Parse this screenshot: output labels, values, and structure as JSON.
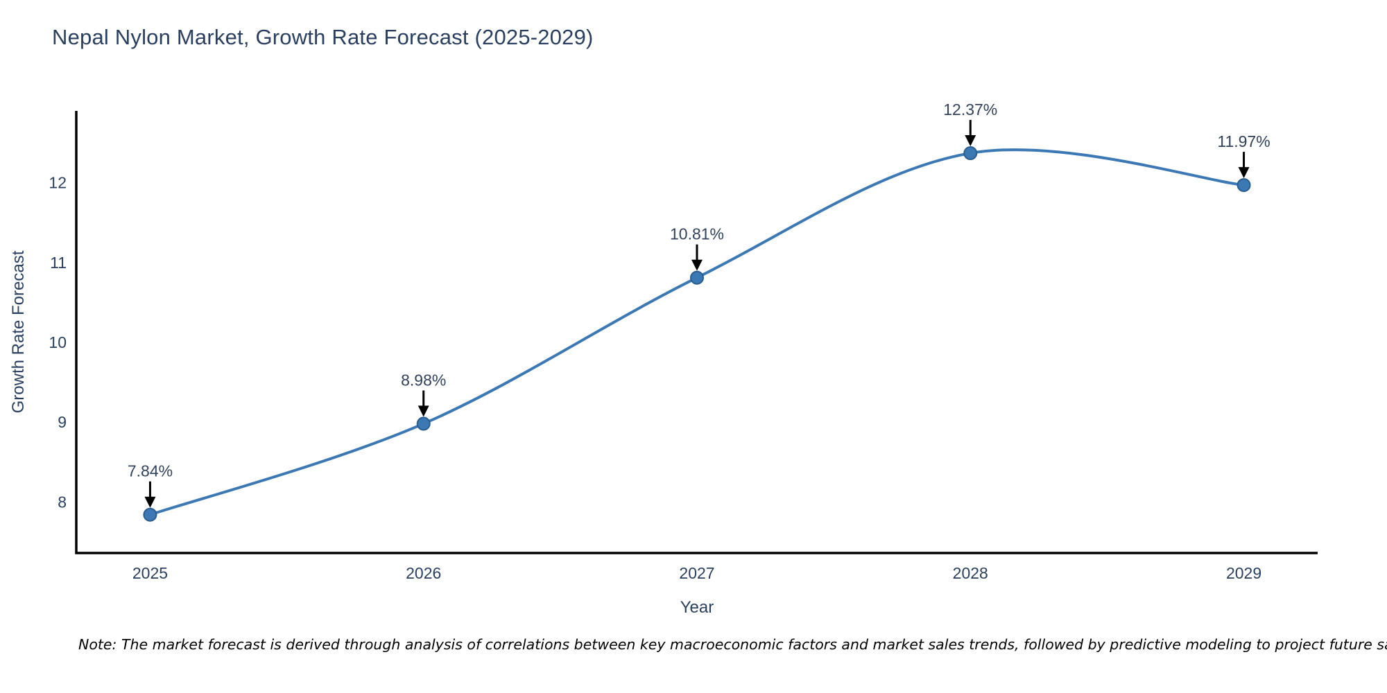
{
  "title": "Nepal Nylon Market, Growth Rate Forecast (2025-2029)",
  "footnote": "Note: The market forecast is derived through analysis of correlations between key macroeconomic factors and market sales trends, followed by predictive modeling to project future sales",
  "chart_data": {
    "type": "line",
    "line_shape": "spline",
    "title": "Nepal Nylon Market, Growth Rate Forecast (2025-2029)",
    "xlabel": "Year",
    "ylabel": "Growth Rate Forecast",
    "x": [
      2025,
      2026,
      2027,
      2028,
      2029
    ],
    "values": [
      7.84,
      8.98,
      10.81,
      12.37,
      11.97
    ],
    "point_labels": [
      "7.84%",
      "8.98%",
      "10.81%",
      "12.37%",
      "11.97%"
    ],
    "x_tick_labels": [
      "2025",
      "2026",
      "2027",
      "2028",
      "2029"
    ],
    "y_ticks": [
      8,
      9,
      10,
      11,
      12
    ],
    "xlim": [
      2024.73,
      2029.27
    ],
    "ylim": [
      7.36,
      12.9
    ],
    "grid": false,
    "legend": "none",
    "colors": {
      "line": "#3c78b4",
      "marker_fill": "#3c78b4",
      "marker_edge": "#2a5d8f",
      "axis": "#000000",
      "arrow": "#000000",
      "text": "#2a3f5f",
      "annotation_text": "#33415c",
      "note_text": "#000000",
      "background": "#ffffff"
    }
  }
}
